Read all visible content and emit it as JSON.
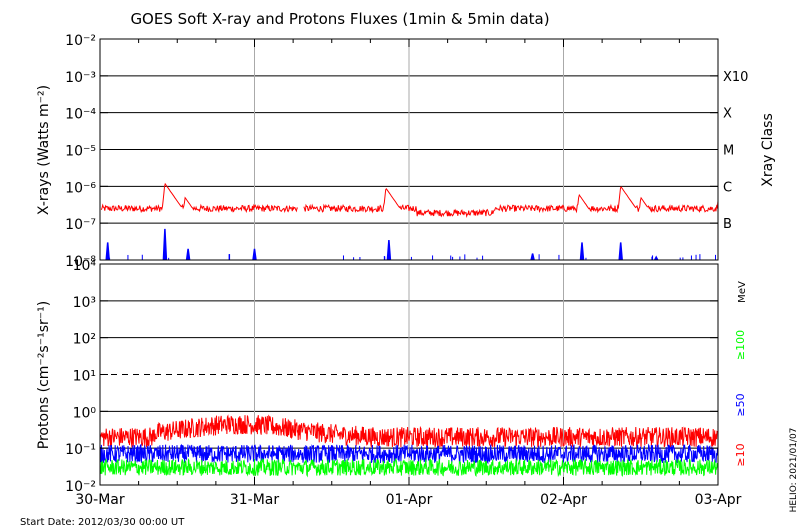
{
  "chart_data": [
    {
      "type": "line",
      "title": "GOES Soft X-ray and Protons Fluxes   (1min & 5min data)",
      "ylabel": "X-rays (Watts m⁻²)",
      "y_scale": "log",
      "ylim": [
        1e-08,
        0.01
      ],
      "x_tick_labels": [
        "30-Mar",
        "31-Mar",
        "01-Apr",
        "02-Apr",
        "03-Apr"
      ],
      "y_tick_labels": [
        "10⁻⁸",
        "10⁻⁷",
        "10⁻⁶",
        "10⁻⁵",
        "10⁻⁴",
        "10⁻³",
        "10⁻²"
      ],
      "right_axis_label": "Xray Class",
      "class_labels": [
        {
          "label": "B",
          "flux": 1e-07
        },
        {
          "label": "C",
          "flux": 1e-06
        },
        {
          "label": "M",
          "flux": 1e-05
        },
        {
          "label": "X",
          "flux": 0.0001
        },
        {
          "label": "X10",
          "flux": 0.001
        }
      ],
      "series": [
        {
          "color": "#ff0000",
          "baseline_flux": 2.5e-07,
          "peaks": [
            [
              0.42,
              1.2e-06
            ],
            [
              0.55,
              5e-07
            ],
            [
              1.85,
              9e-07
            ],
            [
              2.45,
              2.5e-07
            ],
            [
              3.1,
              6e-07
            ],
            [
              3.37,
              1e-06
            ],
            [
              3.5,
              5e-07
            ],
            [
              4.0,
              4e-07
            ]
          ]
        },
        {
          "color": "#0000ff",
          "baseline_flux": 1e-08,
          "spikes": [
            [
              0.05,
              3e-08
            ],
            [
              0.42,
              7e-08
            ],
            [
              0.57,
              2e-08
            ],
            [
              1.0,
              2e-08
            ],
            [
              1.87,
              3.5e-08
            ],
            [
              2.8,
              1.5e-08
            ],
            [
              3.12,
              3e-08
            ],
            [
              3.37,
              3e-08
            ],
            [
              3.6,
              1.2e-08
            ]
          ]
        }
      ]
    },
    {
      "type": "line",
      "ylabel": "Protons (cm⁻²s⁻¹sr⁻¹)",
      "y_scale": "log",
      "ylim": [
        0.01,
        10000
      ],
      "x_tick_labels": [
        "30-Mar",
        "31-Mar",
        "01-Apr",
        "02-Apr",
        "03-Apr"
      ],
      "y_tick_labels": [
        "10⁻²",
        "10⁻¹",
        "10⁰",
        "10¹",
        "10²",
        "10³",
        "10⁴"
      ],
      "unit_label": "MeV",
      "threshold": 10,
      "series": [
        {
          "name": "≥10",
          "color": "#ff0000",
          "level": 0.2
        },
        {
          "name": "≥50",
          "color": "#0000ff",
          "level": 0.07
        },
        {
          "name": "≥100",
          "color": "#00ff00",
          "level": 0.03
        }
      ]
    }
  ],
  "footer": {
    "start_date": "Start Date: 2012/03/30 00:00 UT",
    "credit": "HELIO: 2021/01/07"
  }
}
